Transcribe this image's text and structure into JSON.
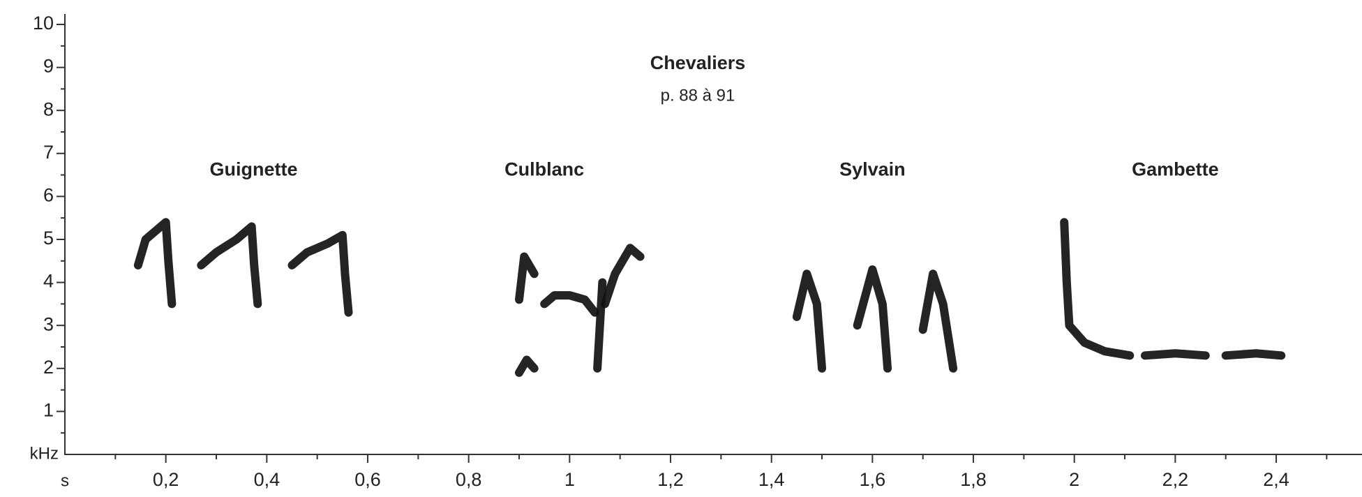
{
  "chart_data": {
    "type": "spectrogram",
    "title": "Chevaliers",
    "subtitle": "p. 88 à 91",
    "x_label": "s",
    "y_label": "kHz",
    "xlim": [
      0,
      2.57
    ],
    "ylim": [
      0,
      10
    ],
    "xticks": [
      {
        "value": 0.2,
        "label": "0,2"
      },
      {
        "value": 0.4,
        "label": "0,4"
      },
      {
        "value": 0.6,
        "label": "0,6"
      },
      {
        "value": 0.8,
        "label": "0,8"
      },
      {
        "value": 1,
        "label": "1"
      },
      {
        "value": 1.2,
        "label": "1,2"
      },
      {
        "value": 1.4,
        "label": "1,4"
      },
      {
        "value": 1.6,
        "label": "1,6"
      },
      {
        "value": 1.8,
        "label": "1,8"
      },
      {
        "value": 2,
        "label": "2"
      },
      {
        "value": 2.2,
        "label": "2,2"
      },
      {
        "value": 2.4,
        "label": "2,4"
      }
    ],
    "xminorticks": [
      0.1,
      0.3,
      0.5,
      0.7,
      0.9,
      1.1,
      1.3,
      1.5,
      1.7,
      1.9,
      2.1,
      2.3,
      2.5
    ],
    "yticks": [
      1,
      2,
      3,
      4,
      5,
      6,
      7,
      8,
      9,
      10
    ],
    "yminorticks": [
      0.5,
      1.5,
      2.5,
      3.5,
      4.5,
      5.5,
      6.5,
      7.5,
      8.5,
      9.5
    ],
    "color": "#111111",
    "annotations": [
      "Guignette",
      "Culblanc",
      "Sylvain",
      "Gambette"
    ],
    "traces": [
      {
        "x": [
          0.145,
          0.16,
          0.18,
          0.2,
          0.205,
          0.212
        ],
        "values": [
          4.4,
          5.0,
          5.2,
          5.4,
          4.5,
          3.5
        ]
      },
      {
        "x": [
          0.27,
          0.3,
          0.34,
          0.37,
          0.375,
          0.382
        ],
        "values": [
          4.4,
          4.7,
          5.0,
          5.3,
          4.4,
          3.5
        ]
      },
      {
        "x": [
          0.45,
          0.48,
          0.52,
          0.55,
          0.555,
          0.562
        ],
        "values": [
          4.4,
          4.7,
          4.9,
          5.1,
          4.2,
          3.3
        ]
      },
      {
        "x": [
          0.9,
          0.91,
          0.93
        ],
        "values": [
          3.6,
          4.6,
          4.2
        ]
      },
      {
        "x": [
          0.9,
          0.915,
          0.93
        ],
        "values": [
          1.9,
          2.2,
          2.0
        ]
      },
      {
        "x": [
          0.95,
          0.97,
          1.0,
          1.03,
          1.05
        ],
        "values": [
          3.5,
          3.7,
          3.7,
          3.6,
          3.3
        ]
      },
      {
        "x": [
          1.055,
          1.06,
          1.065
        ],
        "values": [
          2.0,
          3.0,
          4.0
        ]
      },
      {
        "x": [
          1.07,
          1.09,
          1.12,
          1.14
        ],
        "values": [
          3.5,
          4.2,
          4.8,
          4.6
        ]
      },
      {
        "x": [
          1.45,
          1.47,
          1.49,
          1.5
        ],
        "values": [
          3.2,
          4.2,
          3.5,
          2.0
        ]
      },
      {
        "x": [
          1.57,
          1.6,
          1.62,
          1.63
        ],
        "values": [
          3.0,
          4.3,
          3.5,
          2.0
        ]
      },
      {
        "x": [
          1.7,
          1.72,
          1.74,
          1.76
        ],
        "values": [
          2.9,
          4.2,
          3.5,
          2.0
        ]
      },
      {
        "x": [
          1.98,
          1.985,
          1.99,
          2.02,
          2.06,
          2.11
        ],
        "values": [
          5.4,
          4.0,
          3.0,
          2.6,
          2.4,
          2.3
        ]
      },
      {
        "x": [
          2.14,
          2.2,
          2.26
        ],
        "values": [
          2.3,
          2.35,
          2.3
        ]
      },
      {
        "x": [
          2.3,
          2.36,
          2.41
        ],
        "values": [
          2.3,
          2.35,
          2.3
        ]
      }
    ]
  }
}
